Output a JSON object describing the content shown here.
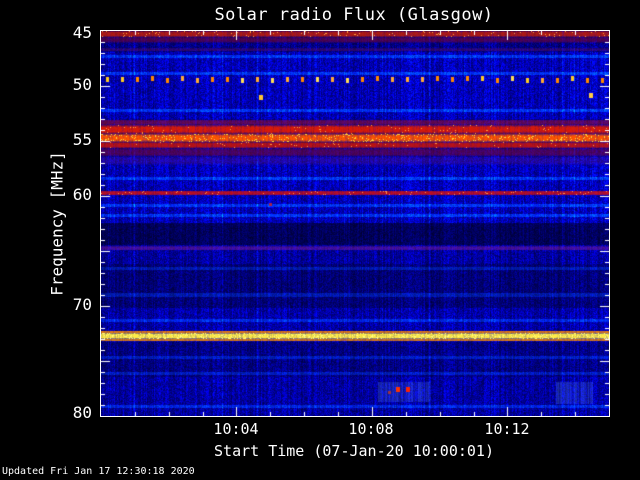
{
  "title": "Solar radio Flux (Glasgow)",
  "footer": {
    "updated": "Updated Fri Jan 17 12:30:18 2020"
  },
  "chart_data": {
    "type": "heatmap",
    "title": "Solar radio Flux (Glasgow)",
    "xlabel": "Start Time (07-Jan-20 10:00:01)",
    "ylabel": "Frequency [MHz]",
    "x_start_time": "10:00:01",
    "x_minutes": 15,
    "x_ticks": [
      {
        "m": 4,
        "label": "10:04"
      },
      {
        "m": 8,
        "label": "10:08"
      },
      {
        "m": 12,
        "label": "10:12"
      }
    ],
    "y_ticks": [
      {
        "f": 45,
        "label": "45"
      },
      {
        "f": 50,
        "label": "50"
      },
      {
        "f": 55,
        "label": "55"
      },
      {
        "f": 60,
        "label": "60"
      },
      {
        "f": 70,
        "label": "70"
      },
      {
        "f": 80,
        "label": "80"
      }
    ],
    "ylim": [
      45,
      80
    ],
    "axis_color": "#ffffff",
    "colormap": "blue background with red/orange/yellow emission bands",
    "blue_profile": [
      {
        "f0": 45.0,
        "f1": 46.9,
        "level": 0.75
      },
      {
        "f0": 46.9,
        "f1": 53.0,
        "level": 1.0
      },
      {
        "f0": 53.0,
        "f1": 56.5,
        "level": 0.85
      },
      {
        "f0": 56.5,
        "f1": 62.5,
        "level": 1.0
      },
      {
        "f0": 62.5,
        "f1": 64.5,
        "level": 0.5
      },
      {
        "f0": 64.5,
        "f1": 66.2,
        "level": 0.85
      },
      {
        "f0": 66.2,
        "f1": 70.2,
        "level": 0.65
      },
      {
        "f0": 70.2,
        "f1": 73.3,
        "level": 0.9
      },
      {
        "f0": 73.3,
        "f1": 76.5,
        "level": 0.72
      },
      {
        "f0": 76.5,
        "f1": 80.01,
        "level": 0.88
      }
    ],
    "light_rows": [
      47.3,
      48.9,
      52.2,
      58.4,
      60.9,
      61.8,
      66.6,
      69.0,
      71.3,
      74.7,
      76.1,
      79.1
    ],
    "bands": [
      {
        "f0": 45.0,
        "f1": 45.55,
        "color": [
          205,
          30,
          0
        ],
        "alpha": 0.85,
        "sparkle": 0.04
      },
      {
        "f0": 45.55,
        "f1": 46.05,
        "color": [
          125,
          5,
          45
        ],
        "alpha": 0.6,
        "sparkle": 0
      },
      {
        "f0": 46.55,
        "f1": 46.85,
        "color": [
          150,
          25,
          80
        ],
        "alpha": 0.3,
        "sparkle": 0
      },
      {
        "f0": 53.05,
        "f1": 53.55,
        "color": [
          175,
          15,
          35
        ],
        "alpha": 0.55,
        "sparkle": 0
      },
      {
        "f0": 53.55,
        "f1": 54.35,
        "color": [
          228,
          28,
          0
        ],
        "alpha": 0.95,
        "sparkle": 0.02
      },
      {
        "f0": 54.35,
        "f1": 55.1,
        "color": [
          255,
          85,
          0
        ],
        "alpha": 1,
        "sparkle": 0.1
      },
      {
        "f0": 55.1,
        "f1": 55.65,
        "color": [
          205,
          20,
          5
        ],
        "alpha": 0.9,
        "sparkle": 0.02
      },
      {
        "f0": 55.65,
        "f1": 56.4,
        "color": [
          125,
          5,
          55
        ],
        "alpha": 0.6,
        "sparkle": 0
      },
      {
        "f0": 56.4,
        "f1": 57.15,
        "color": [
          95,
          20,
          135
        ],
        "alpha": 0.35,
        "sparkle": 0
      },
      {
        "f0": 59.5,
        "f1": 59.95,
        "color": [
          218,
          18,
          10
        ],
        "alpha": 0.85,
        "sparkle": 0.04
      },
      {
        "f0": 64.55,
        "f1": 64.95,
        "color": [
          140,
          30,
          160
        ],
        "alpha": 0.5,
        "sparkle": 0
      },
      {
        "f0": 72.25,
        "f1": 72.45,
        "color": [
          255,
          140,
          0
        ],
        "alpha": 0.9,
        "sparkle": 0
      },
      {
        "f0": 72.45,
        "f1": 73.0,
        "color": [
          255,
          235,
          70
        ],
        "alpha": 1,
        "sparkle": 0.15
      },
      {
        "f0": 73.0,
        "f1": 73.2,
        "color": [
          255,
          145,
          0
        ],
        "alpha": 0.85,
        "sparkle": 0
      }
    ],
    "dot_row": {
      "f": 49.45,
      "step": 15,
      "w": 3,
      "h": 5,
      "colors": [
        "#ffcc22",
        "#ff8800",
        "#ffaa33",
        "#ffdd55"
      ]
    },
    "dots": [
      {
        "xf": 0.311,
        "f": 51.0,
        "color": "#ffc433",
        "w": 4,
        "h": 5
      },
      {
        "xf": 0.961,
        "f": 50.9,
        "color": "#ffcc44",
        "w": 4,
        "h": 5
      },
      {
        "xf": 0.33,
        "f": 60.8,
        "color": "#aa2244",
        "w": 3,
        "h": 3
      },
      {
        "xf": 0.565,
        "f": 77.9,
        "color": "#993344",
        "w": 3,
        "h": 3
      },
      {
        "xf": 0.581,
        "f": 77.6,
        "color": "#ff3300",
        "w": 4,
        "h": 5
      },
      {
        "xf": 0.6,
        "f": 77.6,
        "color": "#ff2200",
        "w": 4,
        "h": 5
      }
    ],
    "patches": [
      {
        "xf0": 0.545,
        "xf1": 0.65,
        "f0": 76.9,
        "f1": 78.7
      },
      {
        "xf0": 0.895,
        "xf1": 0.968,
        "f0": 76.9,
        "f1": 78.9
      }
    ]
  }
}
